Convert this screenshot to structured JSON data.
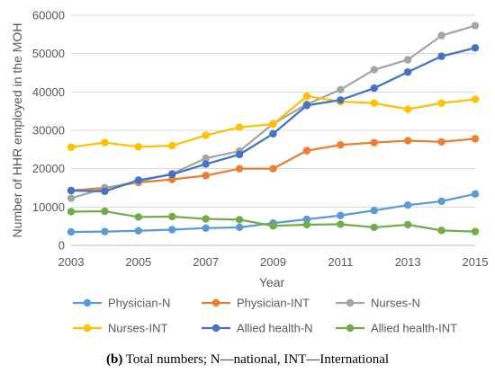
{
  "chart_data": {
    "type": "line",
    "xlabel": "Year",
    "ylabel": "Number of HHR employed in the MOH",
    "x": [
      2003,
      2004,
      2005,
      2006,
      2007,
      2008,
      2009,
      2010,
      2011,
      2012,
      2013,
      2014,
      2015
    ],
    "xticks": [
      "2003",
      "2005",
      "2007",
      "2009",
      "2011",
      "2013",
      "2015"
    ],
    "ylim": [
      0,
      60000
    ],
    "yticks": [
      "0",
      "10000",
      "20000",
      "30000",
      "40000",
      "50000",
      "60000"
    ],
    "grid": "horizontal",
    "legend_position": "bottom",
    "series": [
      {
        "name": "Physician-N",
        "color": "#5B9BD5",
        "values": [
          3500,
          3600,
          3800,
          4100,
          4500,
          4700,
          5800,
          6800,
          7800,
          9100,
          10500,
          11500,
          13400
        ]
      },
      {
        "name": "Physician-INT",
        "color": "#ED7D31",
        "values": [
          14300,
          15000,
          16400,
          17200,
          18200,
          20000,
          20000,
          24700,
          26200,
          26800,
          27300,
          27000,
          27800
        ]
      },
      {
        "name": "Nurses-N",
        "color": "#A5A5A5",
        "values": [
          12300,
          14900,
          16700,
          18700,
          22700,
          24600,
          31700,
          36800,
          40600,
          45800,
          48400,
          54700,
          57300
        ]
      },
      {
        "name": "Nurses-INT",
        "color": "#FFC000",
        "values": [
          25600,
          26800,
          25700,
          26000,
          28700,
          30800,
          31600,
          38900,
          37500,
          37100,
          35500,
          37100,
          38100
        ]
      },
      {
        "name": "Allied health-N",
        "color": "#4472C4",
        "values": [
          14300,
          14100,
          17000,
          18500,
          21200,
          23700,
          29100,
          36500,
          37900,
          41000,
          45200,
          49300,
          51500
        ]
      },
      {
        "name": "Allied health-INT",
        "color": "#70AD47",
        "values": [
          8800,
          8900,
          7400,
          7500,
          6900,
          6700,
          5100,
          5400,
          5500,
          4700,
          5400,
          3900,
          3600
        ]
      }
    ]
  },
  "caption": {
    "label": "(b)",
    "text": " Total numbers; N—national, INT—International"
  }
}
